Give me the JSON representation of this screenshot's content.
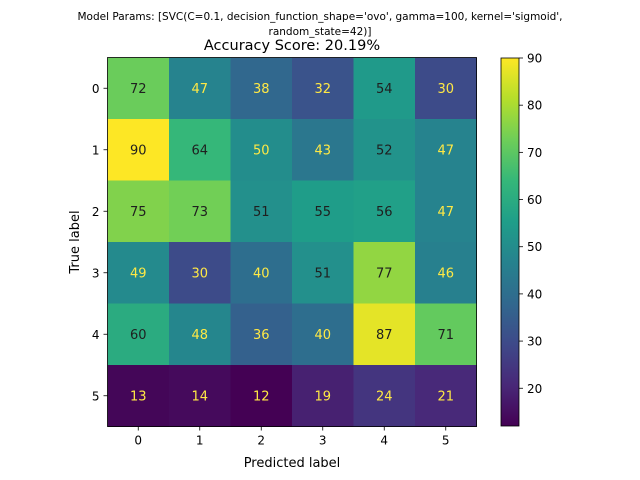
{
  "chart_data": {
    "type": "heatmap",
    "suptitle_lines": [
      "Model Params: [SVC(C=0.1, decision_function_shape='ovo', gamma=100, kernel='sigmoid',",
      "random_state=42)]"
    ],
    "title": "Accuracy Score: 20.19%",
    "xlabel": "Predicted label",
    "ylabel": "True label",
    "x_tick_labels": [
      "0",
      "1",
      "2",
      "3",
      "4",
      "5"
    ],
    "y_tick_labels": [
      "0",
      "1",
      "2",
      "3",
      "4",
      "5"
    ],
    "matrix": [
      [
        72,
        47,
        38,
        32,
        54,
        30
      ],
      [
        90,
        64,
        50,
        43,
        52,
        47
      ],
      [
        75,
        73,
        51,
        55,
        56,
        47
      ],
      [
        49,
        30,
        40,
        51,
        77,
        46
      ],
      [
        60,
        48,
        36,
        40,
        87,
        71
      ],
      [
        13,
        14,
        12,
        19,
        24,
        21
      ]
    ],
    "value_range": [
      12,
      90
    ],
    "colorbar_ticks": [
      20,
      30,
      40,
      50,
      60,
      70,
      80,
      90
    ],
    "colormap": "viridis",
    "label_colors": {
      "dark_cell": "#ffe945",
      "light_cell": "#1f1f1f"
    }
  }
}
